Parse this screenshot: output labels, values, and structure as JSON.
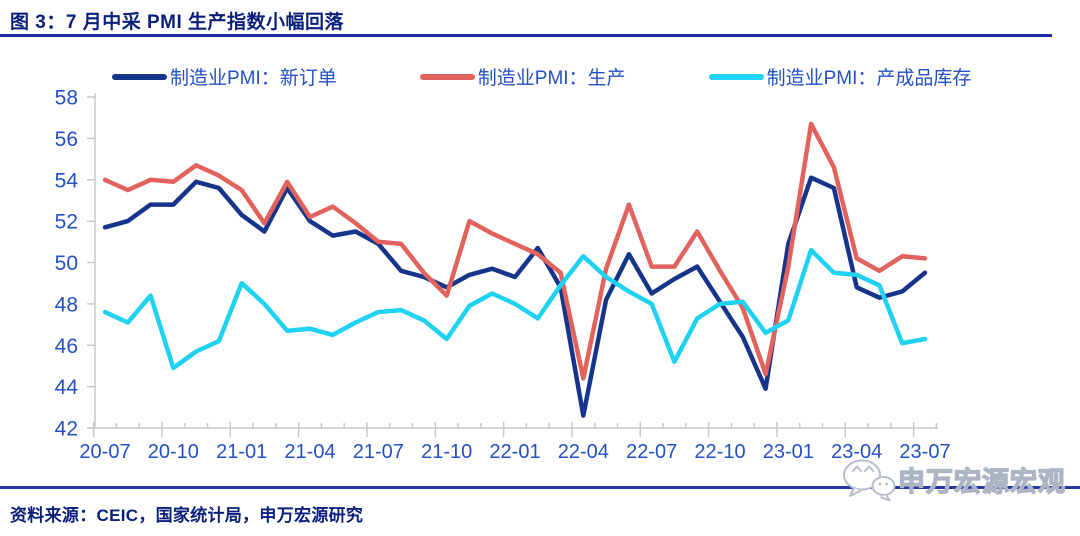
{
  "page": {
    "title": "图 3：7 月中采 PMI 生产指数小幅回落",
    "source_note": "资料来源：CEIC，国家统计局，申万宏源研究",
    "watermark": "申万宏源宏观"
  },
  "colors": {
    "title_text": "#0A1F7B",
    "title_rule": "#1B2FA0",
    "legend_text": "#2450C4",
    "axis_labels": "#2450C4",
    "axis_line": "#C8C8C8",
    "footer_rule": "#2336A5",
    "footer_text": "#0A1F7B",
    "watermark_gray": "#ADB4C4"
  },
  "chart_data": {
    "type": "line",
    "title": "图 3：7 月中采 PMI 生产指数小幅回落",
    "xlabel": "",
    "ylabel": "",
    "ylim": [
      42,
      58
    ],
    "yticks": [
      42,
      44,
      46,
      48,
      50,
      52,
      54,
      56,
      58
    ],
    "grid": false,
    "legend_position": "top",
    "x": [
      "20-07",
      "20-08",
      "20-09",
      "20-10",
      "20-11",
      "20-12",
      "21-01",
      "21-02",
      "21-03",
      "21-04",
      "21-05",
      "21-06",
      "21-07",
      "21-08",
      "21-09",
      "21-10",
      "21-11",
      "21-12",
      "22-01",
      "22-02",
      "22-03",
      "22-04",
      "22-05",
      "22-06",
      "22-07",
      "22-08",
      "22-09",
      "22-10",
      "22-11",
      "22-12",
      "23-01",
      "23-02",
      "23-03",
      "23-04",
      "23-05",
      "23-06",
      "23-07"
    ],
    "xtick_labels": [
      "20-07",
      "20-10",
      "21-01",
      "21-04",
      "21-07",
      "21-10",
      "22-01",
      "22-04",
      "22-07",
      "22-10",
      "23-01",
      "23-04",
      "23-07"
    ],
    "series": [
      {
        "name": "制造业PMI：新订单",
        "color": "#17348B",
        "values": [
          51.7,
          52.0,
          52.8,
          52.8,
          53.9,
          53.6,
          52.3,
          51.5,
          53.6,
          52.0,
          51.3,
          51.5,
          50.9,
          49.6,
          49.3,
          48.8,
          49.4,
          49.7,
          49.3,
          50.7,
          48.8,
          42.6,
          48.2,
          50.4,
          48.5,
          49.2,
          49.8,
          48.1,
          46.4,
          43.9,
          50.9,
          54.1,
          53.6,
          48.8,
          48.3,
          48.6,
          49.5
        ]
      },
      {
        "name": "制造业PMI：生产",
        "color": "#E2635E",
        "values": [
          54.0,
          53.5,
          54.0,
          53.9,
          54.7,
          54.2,
          53.5,
          51.9,
          53.9,
          52.2,
          52.7,
          51.9,
          51.0,
          50.9,
          49.5,
          48.4,
          52.0,
          51.4,
          50.9,
          50.4,
          49.5,
          44.4,
          49.7,
          52.8,
          49.8,
          49.8,
          51.5,
          49.6,
          47.8,
          44.6,
          49.8,
          56.7,
          54.6,
          50.2,
          49.6,
          50.3,
          50.2
        ]
      },
      {
        "name": "制造业PMI：产成品库存",
        "color": "#1FD2F2",
        "values": [
          47.6,
          47.1,
          48.4,
          44.9,
          45.7,
          46.2,
          49.0,
          48.0,
          46.7,
          46.8,
          46.5,
          47.1,
          47.6,
          47.7,
          47.2,
          46.3,
          47.9,
          48.5,
          48.0,
          47.3,
          48.9,
          50.3,
          49.3,
          48.6,
          48.0,
          45.2,
          47.3,
          48.0,
          48.1,
          46.6,
          47.2,
          50.6,
          49.5,
          49.4,
          48.9,
          46.1,
          46.3
        ]
      }
    ]
  }
}
